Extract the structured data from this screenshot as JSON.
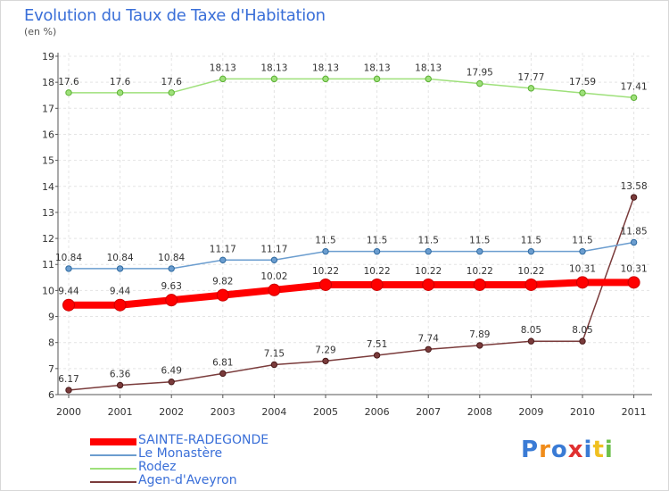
{
  "title": "Evolution du Taux de Taxe d'Habitation",
  "subtitle": "(en %)",
  "logo_text": "Proxiti",
  "chart_data": {
    "type": "line",
    "title": "Evolution du Taux de Taxe d'Habitation",
    "subtitle": "(en %)",
    "x": [
      "2000",
      "2001",
      "2002",
      "2003",
      "2004",
      "2005",
      "2006",
      "2007",
      "2008",
      "2009",
      "2010",
      "2011"
    ],
    "ylim": [
      6,
      19
    ],
    "yticks": [
      6,
      7,
      8,
      9,
      10,
      11,
      12,
      13,
      14,
      15,
      16,
      17,
      18,
      19
    ],
    "grid": true,
    "legend_placement": "bottom-left",
    "series": [
      {
        "name": "SAINTE-RADEGONDE",
        "color": "#ff0000",
        "values": [
          9.44,
          9.44,
          9.63,
          9.82,
          10.02,
          10.22,
          10.22,
          10.22,
          10.22,
          10.22,
          10.31,
          10.31
        ],
        "labels": [
          "9.44",
          "9.44",
          "9.63",
          "9.82",
          "10.02",
          "10.22",
          "10.22",
          "10.22",
          "10.22",
          "10.22",
          "10.31",
          "10.31"
        ]
      },
      {
        "name": "Le Monastère",
        "color": "#6b9dcf",
        "values": [
          10.84,
          10.84,
          10.84,
          11.17,
          11.17,
          11.5,
          11.5,
          11.5,
          11.5,
          11.5,
          11.5,
          11.85
        ],
        "labels": [
          "10.84",
          "10.84",
          "10.84",
          "11.17",
          "11.17",
          "11.5",
          "11.5",
          "11.5",
          "11.5",
          "11.5",
          "11.5",
          "11.85"
        ]
      },
      {
        "name": "Rodez",
        "color": "#9ee07a",
        "values": [
          17.6,
          17.6,
          17.6,
          18.13,
          18.13,
          18.13,
          18.13,
          18.13,
          17.95,
          17.77,
          17.59,
          17.41
        ],
        "labels": [
          "17.6",
          "17.6",
          "17.6",
          "18.13",
          "18.13",
          "18.13",
          "18.13",
          "18.13",
          "17.95",
          "17.77",
          "17.59",
          "17.41"
        ]
      },
      {
        "name": "Agen-d'Aveyron",
        "color": "#7a3b3b",
        "values": [
          6.17,
          6.36,
          6.49,
          6.81,
          7.15,
          7.29,
          7.51,
          7.74,
          7.89,
          8.05,
          8.05,
          13.58
        ],
        "labels": [
          "6.17",
          "6.36",
          "6.49",
          "6.81",
          "7.15",
          "7.29",
          "7.51",
          "7.74",
          "7.89",
          "8.05",
          "8.05",
          "13.58"
        ]
      }
    ]
  }
}
